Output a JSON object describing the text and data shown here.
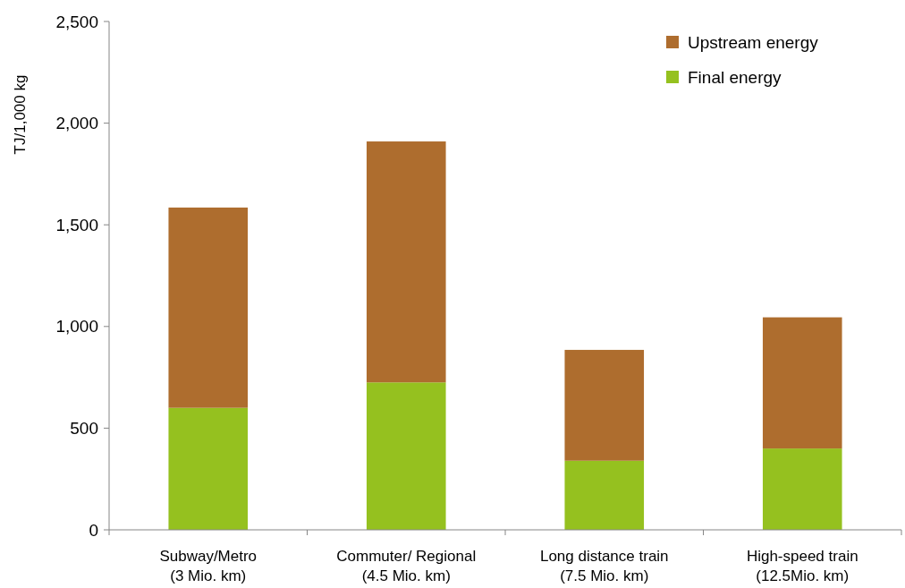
{
  "chart_data": {
    "type": "bar",
    "stacked": true,
    "ylabel": "TJ/1,000 kg",
    "categories": [
      "Subway/Metro\n(3 Mio. km)",
      "Commuter/ Regional\n(4.5 Mio. km)",
      "Long distance train\n(7.5 Mio. km)",
      "High-speed train\n(12.5Mio. km)"
    ],
    "series": [
      {
        "name": "Final energy",
        "color": "#95c11f",
        "values": [
          600,
          725,
          340,
          400
        ]
      },
      {
        "name": "Upstream energy",
        "color": "#ae6d2e",
        "values": [
          985,
          1185,
          545,
          645
        ]
      }
    ],
    "ylim": [
      0,
      2500
    ],
    "yticks": [
      {
        "value": 0,
        "label": "0"
      },
      {
        "value": 500,
        "label": "500"
      },
      {
        "value": 1000,
        "label": "1,000"
      },
      {
        "value": 1500,
        "label": "1,500"
      },
      {
        "value": 2000,
        "label": "2,000"
      },
      {
        "value": 2500,
        "label": "2,500"
      }
    ],
    "grid": false,
    "legend": "top right"
  }
}
